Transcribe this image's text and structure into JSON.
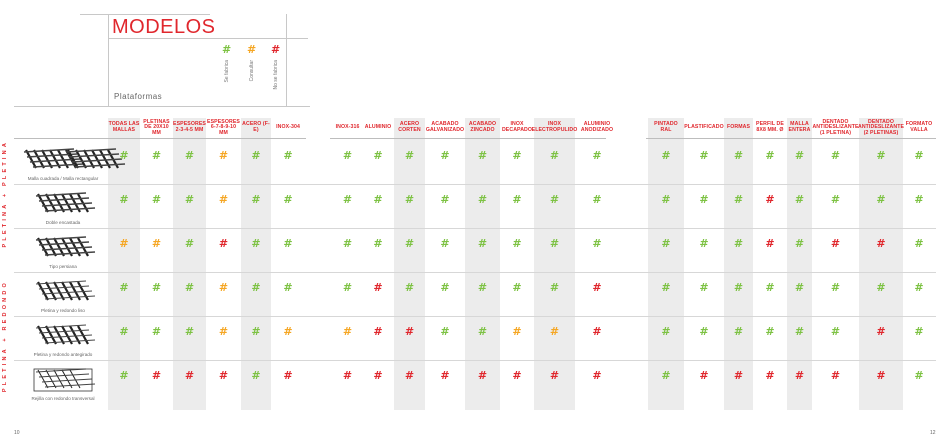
{
  "title": "MODELOS",
  "section_label": "Plataformas",
  "legend": [
    {
      "text": "Se fabrica",
      "color": "#7dc243"
    },
    {
      "text": "Consultar",
      "color": "#f5a623"
    },
    {
      "text": "No se fabrica",
      "color": "#e0272d"
    }
  ],
  "mark_symbol": "#",
  "colors": {
    "g": "#7dc243",
    "o": "#f5a623",
    "r": "#e0272d"
  },
  "side_labels": {
    "top": "PLETINA + PLETINA",
    "bottom": "PLETINA + REDONDO"
  },
  "columns": [
    {
      "label": "TODAS LAS MALLAS"
    },
    {
      "label": "PLETINAS de 20x10 mm"
    },
    {
      "label": "ESPESORES 2-3-4-5 mm"
    },
    {
      "label": "ESPESORES 6-7-8-9-10 mm"
    },
    {
      "label": "ACERO (F-e)"
    },
    {
      "label": "INOX-304"
    },
    {
      "label": "INOX-316"
    },
    {
      "label": "ALUMINIO"
    },
    {
      "label": "ACERO CORTEN"
    },
    {
      "label": "ACABADO GALVANIZADO"
    },
    {
      "label": "ACABADO ZINCADO"
    },
    {
      "label": "INOX DECAPADO"
    },
    {
      "label": "INOX ELECTROPULIDO"
    },
    {
      "label": "ALUMINIO ANODIZADO"
    },
    {
      "label": "PINTADO RAL"
    },
    {
      "label": "PLASTIFICADO"
    },
    {
      "label": "FORMAS"
    },
    {
      "label": "PERFIL DE 8x8 mm. Ø"
    },
    {
      "label": "MALLA ENTERA"
    },
    {
      "label": "DENTADO ANTIDESLIZANTE (1 pletina)"
    },
    {
      "label": "DENTADO ANTIDESLIZANTE (2 pletinas)"
    },
    {
      "label": "FORMATO VALLA"
    }
  ],
  "rows": [
    {
      "label": "Malla cuadrada / Malla rectangular",
      "marks": [
        "g",
        "g",
        "g",
        "o",
        "g",
        "g",
        "g",
        "g",
        "g",
        "g",
        "g",
        "g",
        "g",
        "g",
        "g",
        "g",
        "g",
        "g",
        "g",
        "g",
        "g",
        "g"
      ]
    },
    {
      "label": "Doble encastada",
      "marks": [
        "g",
        "g",
        "g",
        "o",
        "g",
        "g",
        "g",
        "g",
        "g",
        "g",
        "g",
        "g",
        "g",
        "g",
        "g",
        "g",
        "g",
        "r",
        "g",
        "g",
        "g",
        "g"
      ]
    },
    {
      "label": "Tipo persiana",
      "marks": [
        "o",
        "o",
        "g",
        "r",
        "g",
        "g",
        "g",
        "g",
        "g",
        "g",
        "g",
        "g",
        "g",
        "g",
        "g",
        "g",
        "g",
        "r",
        "g",
        "r",
        "r",
        "g"
      ]
    },
    {
      "label": "Pletina y redondo liso",
      "marks": [
        "g",
        "g",
        "g",
        "o",
        "g",
        "g",
        "g",
        "r",
        "g",
        "g",
        "g",
        "g",
        "g",
        "r",
        "g",
        "g",
        "g",
        "g",
        "g",
        "g",
        "g",
        "g"
      ]
    },
    {
      "label": "Pletina y redondo antegirado",
      "marks": [
        "g",
        "g",
        "g",
        "o",
        "g",
        "o",
        "o",
        "r",
        "r",
        "g",
        "g",
        "o",
        "o",
        "r",
        "g",
        "g",
        "g",
        "g",
        "g",
        "g",
        "r",
        "g"
      ]
    },
    {
      "label": "Rejilla con redondo transversal",
      "marks": [
        "g",
        "r",
        "r",
        "r",
        "g",
        "r",
        "r",
        "r",
        "r",
        "r",
        "r",
        "r",
        "r",
        "r",
        "g",
        "r",
        "r",
        "r",
        "r",
        "r",
        "r",
        "g"
      ]
    }
  ],
  "page_numbers": {
    "left": "10",
    "right": "12"
  }
}
